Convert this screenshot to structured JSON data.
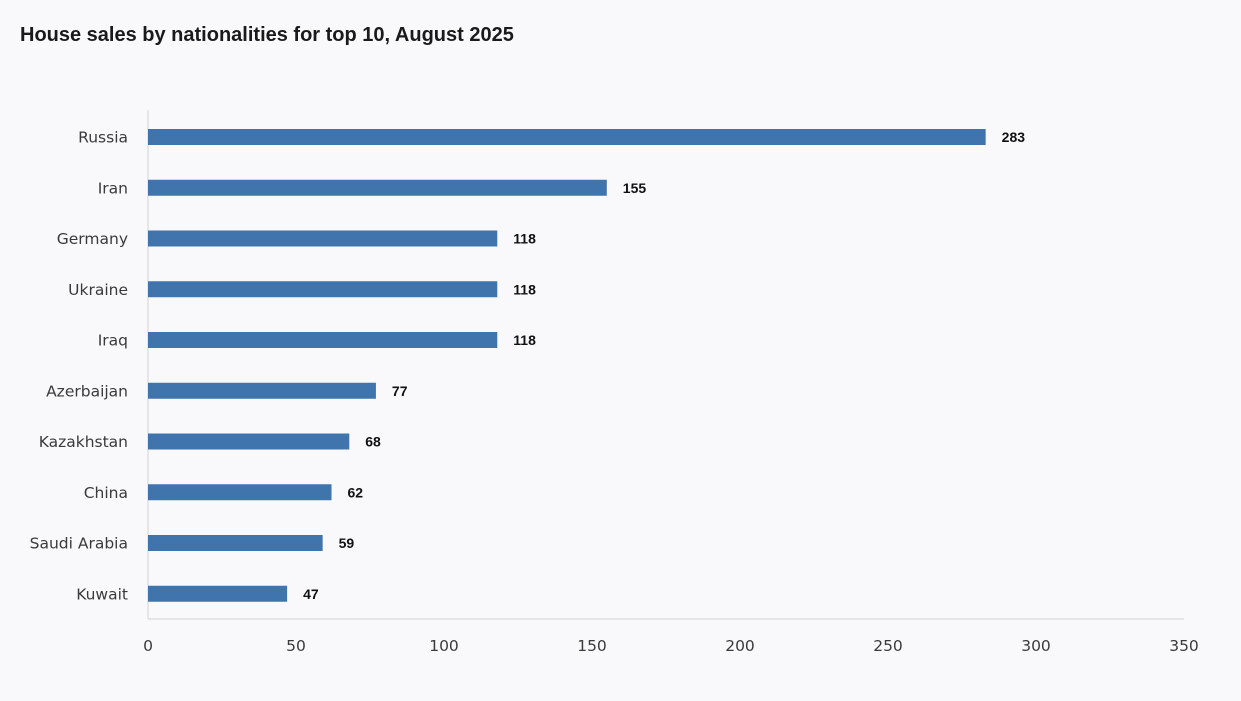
{
  "chart_data": {
    "type": "bar",
    "orientation": "horizontal",
    "title": "House sales by nationalities for top 10, August 2025",
    "xlabel": "",
    "ylabel": "",
    "categories": [
      "Russia",
      "Iran",
      "Germany",
      "Ukraine",
      "Iraq",
      "Azerbaijan",
      "Kazakhstan",
      "China",
      "Saudi Arabia",
      "Kuwait"
    ],
    "values": [
      283,
      155,
      118,
      118,
      118,
      77,
      68,
      62,
      59,
      47
    ],
    "xlim": [
      0,
      350
    ],
    "x_ticks": [
      0,
      50,
      100,
      150,
      200,
      250,
      300,
      350
    ],
    "data_labels": true,
    "grid": false,
    "legend": "none",
    "colors": {
      "bar": "#3f74ad",
      "axis": "#d9d9d9",
      "background": "#f9f9fb"
    }
  }
}
